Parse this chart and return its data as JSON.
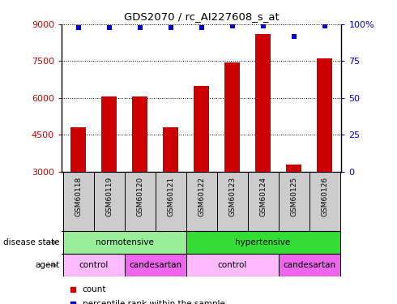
{
  "title": "GDS2070 / rc_AI227608_s_at",
  "samples": [
    "GSM60118",
    "GSM60119",
    "GSM60120",
    "GSM60121",
    "GSM60122",
    "GSM60123",
    "GSM60124",
    "GSM60125",
    "GSM60126"
  ],
  "counts": [
    4800,
    6050,
    6050,
    4800,
    6500,
    7450,
    8600,
    3300,
    7600
  ],
  "percentile_ranks": [
    98,
    98,
    98,
    98,
    98,
    99,
    99,
    92,
    99
  ],
  "bar_color": "#cc0000",
  "dot_color": "#0000cc",
  "ylim_left": [
    3000,
    9000
  ],
  "ylim_right": [
    0,
    100
  ],
  "yticks_left": [
    3000,
    4500,
    6000,
    7500,
    9000
  ],
  "yticks_right": [
    0,
    25,
    50,
    75,
    100
  ],
  "disease_state_groups": [
    {
      "label": "normotensive",
      "start": 0,
      "end": 4,
      "color": "#99ee99"
    },
    {
      "label": "hypertensive",
      "start": 4,
      "end": 9,
      "color": "#33dd33"
    }
  ],
  "agent_groups": [
    {
      "label": "control",
      "start": 0,
      "end": 2,
      "color": "#ffbbff"
    },
    {
      "label": "candesartan",
      "start": 2,
      "end": 4,
      "color": "#ee66ee"
    },
    {
      "label": "control",
      "start": 4,
      "end": 7,
      "color": "#ffbbff"
    },
    {
      "label": "candesartan",
      "start": 7,
      "end": 9,
      "color": "#ee66ee"
    }
  ],
  "bar_color_left": "#cc0000",
  "dot_color_blue": "#0000cc",
  "sample_area_bg": "#cccccc",
  "bar_width": 0.5,
  "figsize": [
    4.9,
    3.75
  ],
  "dpi": 100
}
